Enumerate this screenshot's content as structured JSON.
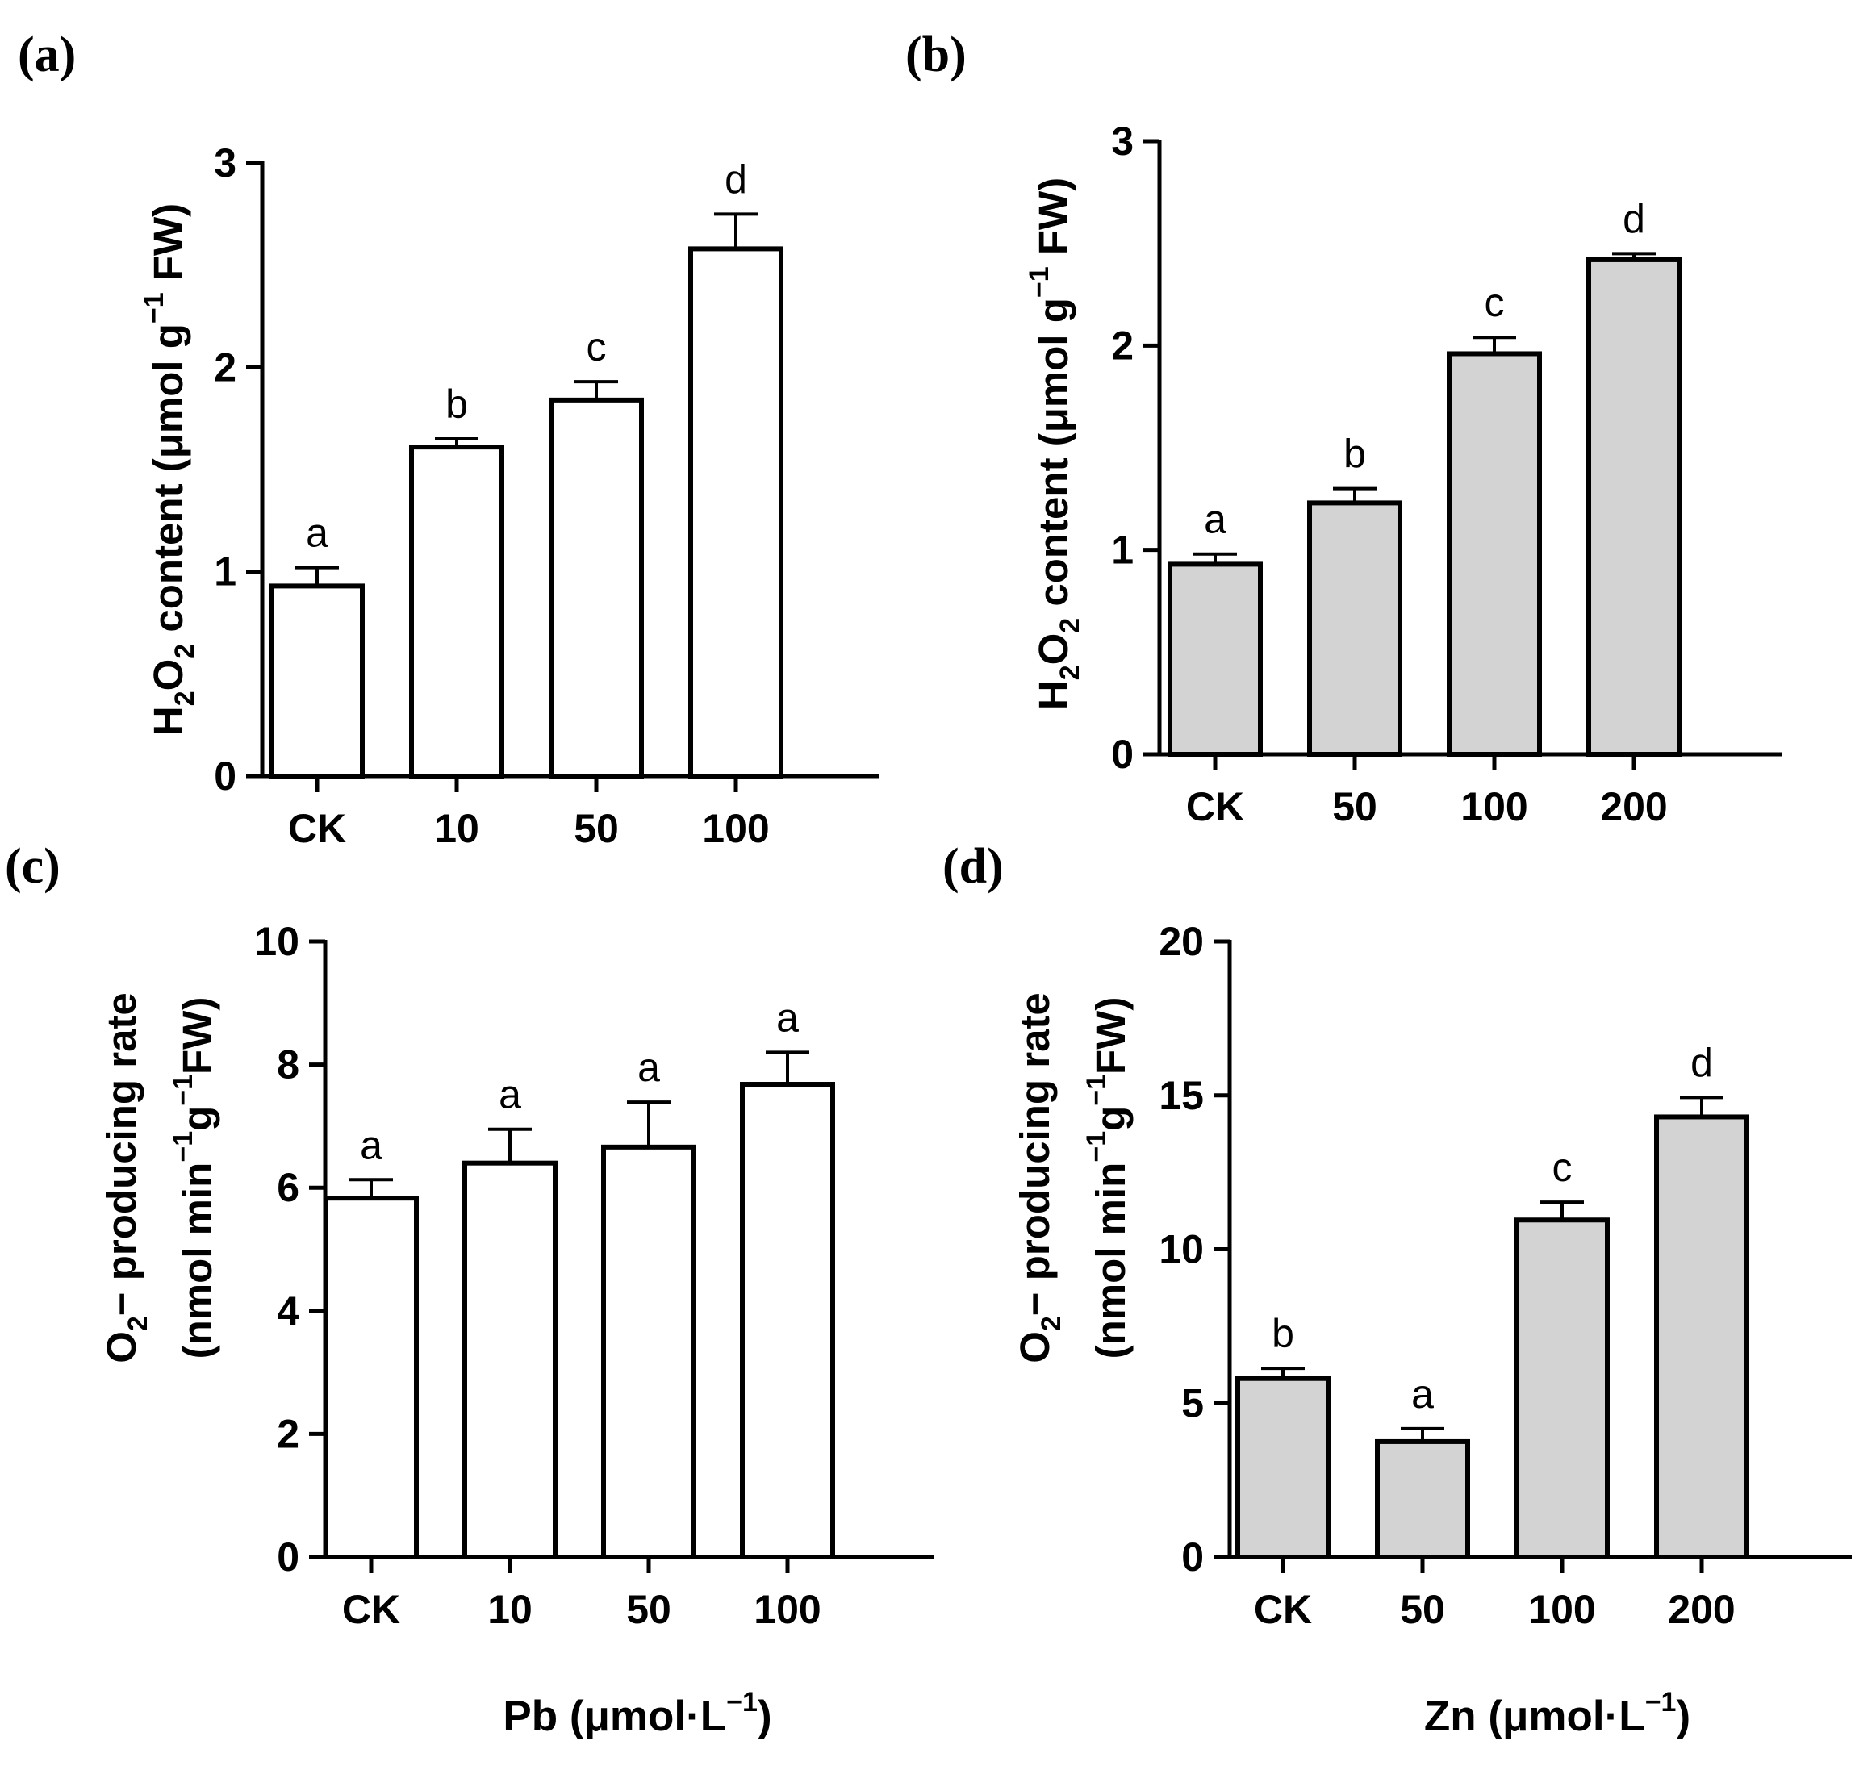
{
  "chart_data": [
    {
      "type": "bar",
      "panel_label": "(a)",
      "categories": [
        "CK",
        "10",
        "50",
        "100"
      ],
      "values": [
        0.93,
        1.61,
        1.84,
        2.58
      ],
      "errors": [
        0.09,
        0.04,
        0.09,
        0.17
      ],
      "significance": [
        "a",
        "b",
        "c",
        "d"
      ],
      "ylabel": {
        "pre": "H",
        "s1": "2",
        "mid": "O",
        "s2": "2",
        "post": " content (μmol g",
        "sup": "−1",
        "tail": " FW)"
      },
      "xlabel": "",
      "ylim": [
        0,
        3
      ],
      "yticks": [
        "0",
        "1",
        "2",
        "3"
      ],
      "bar_color": "#ffffff"
    },
    {
      "type": "bar",
      "panel_label": "(b)",
      "categories": [
        "CK",
        "50",
        "100",
        "200"
      ],
      "values": [
        0.93,
        1.23,
        1.96,
        2.42
      ],
      "errors": [
        0.05,
        0.07,
        0.08,
        0.03
      ],
      "significance": [
        "a",
        "b",
        "c",
        "d"
      ],
      "ylabel": {
        "pre": "H",
        "s1": "2",
        "mid": "O",
        "s2": "2",
        "post": " content (μmol g",
        "sup": "−1",
        "tail": " FW)"
      },
      "xlabel": "",
      "ylim": [
        0,
        3
      ],
      "yticks": [
        "0",
        "1",
        "2",
        "3"
      ],
      "bar_color": "#d3d3d3"
    },
    {
      "type": "bar",
      "panel_label": "(c)",
      "categories": [
        "CK",
        "10",
        "50",
        "100"
      ],
      "values": [
        5.83,
        6.4,
        6.66,
        7.68
      ],
      "errors": [
        0.3,
        0.55,
        0.73,
        0.52
      ],
      "significance": [
        "a",
        "a",
        "a",
        "a"
      ],
      "ylabel_line1": {
        "pre": "O",
        "sub": "2",
        "post": "− producing rate"
      },
      "ylabel_line2": {
        "pre": "(nmol min",
        "sup1": "−1",
        "mid": "g",
        "sup2": "−1",
        "post": "FW)"
      },
      "xlabel": {
        "pre": "Pb (μmol·L",
        "sup": "−1",
        "post": ")"
      },
      "ylim": [
        0,
        10
      ],
      "yticks": [
        "0",
        "2",
        "4",
        "6",
        "8",
        "10"
      ],
      "bar_color": "#ffffff"
    },
    {
      "type": "bar",
      "panel_label": "(d)",
      "categories": [
        "CK",
        "50",
        "100",
        "200"
      ],
      "values": [
        5.8,
        3.75,
        10.95,
        14.3
      ],
      "errors": [
        0.33,
        0.42,
        0.58,
        0.63
      ],
      "significance": [
        "b",
        "a",
        "c",
        "d"
      ],
      "ylabel_line1": {
        "pre": "O",
        "sub": "2",
        "post": "− producing rate"
      },
      "ylabel_line2": {
        "pre": "(nmol min",
        "sup1": "−1",
        "mid": "g",
        "sup2": "−1",
        "post": "FW)"
      },
      "xlabel": {
        "pre": "Zn (μmol·L",
        "sup": "−1",
        "post": ")"
      },
      "ylim": [
        0,
        20
      ],
      "yticks": [
        "0",
        "5",
        "10",
        "15",
        "20"
      ],
      "bar_color": "#d3d3d3"
    }
  ]
}
